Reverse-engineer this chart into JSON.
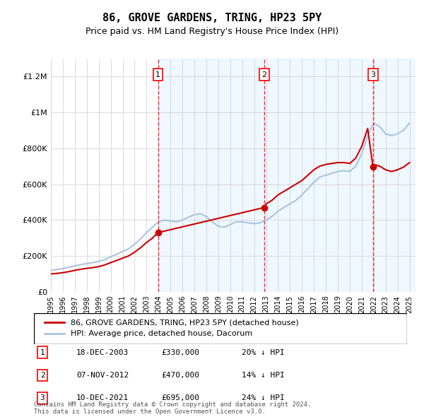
{
  "title": "86, GROVE GARDENS, TRING, HP23 5PY",
  "subtitle": "Price paid vs. HM Land Registry's House Price Index (HPI)",
  "footer": "Contains HM Land Registry data © Crown copyright and database right 2024.\nThis data is licensed under the Open Government Licence v3.0.",
  "legend_line1": "86, GROVE GARDENS, TRING, HP23 5PY (detached house)",
  "legend_line2": "HPI: Average price, detached house, Dacorum",
  "sale_color": "#cc0000",
  "hpi_color": "#aac4e0",
  "background_shade": "#ddeeff",
  "hatch_color": "#ccddee",
  "ylim": [
    0,
    1300000
  ],
  "yticks": [
    0,
    200000,
    400000,
    600000,
    800000,
    1000000,
    1200000
  ],
  "ytick_labels": [
    "£0",
    "£200K",
    "£400K",
    "£600K",
    "£800K",
    "£1M",
    "£1.2M"
  ],
  "sales": [
    {
      "num": 1,
      "date": "18-DEC-2003",
      "price": 330000,
      "hpi_diff": "20% ↓ HPI",
      "x": 2003.96
    },
    {
      "num": 2,
      "date": "07-NOV-2012",
      "price": 470000,
      "hpi_diff": "14% ↓ HPI",
      "x": 2012.85
    },
    {
      "num": 3,
      "date": "10-DEC-2021",
      "price": 695000,
      "hpi_diff": "24% ↓ HPI",
      "x": 2021.94
    }
  ],
  "hpi_x": [
    1995,
    1995.5,
    1996,
    1996.5,
    1997,
    1997.5,
    1998,
    1998.5,
    1999,
    1999.5,
    2000,
    2000.5,
    2001,
    2001.5,
    2002,
    2002.5,
    2003,
    2003.5,
    2004,
    2004.5,
    2005,
    2005.5,
    2006,
    2006.5,
    2007,
    2007.5,
    2008,
    2008.5,
    2009,
    2009.5,
    2010,
    2010.5,
    2011,
    2011.5,
    2012,
    2012.5,
    2013,
    2013.5,
    2014,
    2014.5,
    2015,
    2015.5,
    2016,
    2016.5,
    2017,
    2017.5,
    2018,
    2018.5,
    2019,
    2019.5,
    2020,
    2020.5,
    2021,
    2021.5,
    2022,
    2022.5,
    2023,
    2023.5,
    2024,
    2024.5,
    2025
  ],
  "hpi_y": [
    120000,
    125000,
    130000,
    137000,
    145000,
    152000,
    158000,
    163000,
    170000,
    180000,
    195000,
    210000,
    225000,
    240000,
    265000,
    295000,
    330000,
    360000,
    390000,
    400000,
    395000,
    390000,
    400000,
    415000,
    430000,
    435000,
    420000,
    390000,
    365000,
    360000,
    375000,
    390000,
    390000,
    385000,
    380000,
    385000,
    400000,
    420000,
    450000,
    470000,
    490000,
    510000,
    540000,
    575000,
    610000,
    640000,
    650000,
    660000,
    670000,
    675000,
    670000,
    700000,
    770000,
    870000,
    940000,
    920000,
    880000,
    870000,
    880000,
    900000,
    940000
  ],
  "sale_line_x": [
    1995,
    1995.5,
    1996,
    1996.5,
    1997,
    1997.5,
    1998,
    1998.5,
    1999,
    1999.5,
    2000,
    2000.5,
    2001,
    2001.5,
    2002,
    2002.5,
    2003,
    2003.5,
    2003.96,
    2012.85,
    2013,
    2013.5,
    2014,
    2014.5,
    2015,
    2015.5,
    2016,
    2016.5,
    2017,
    2017.5,
    2018,
    2018.5,
    2019,
    2019.5,
    2020,
    2020.5,
    2021,
    2021.5,
    2021.94,
    2022,
    2022.5,
    2023,
    2023.5,
    2024,
    2024.5,
    2025
  ],
  "sale_line_y": [
    100000,
    103000,
    107000,
    113000,
    120000,
    126000,
    131000,
    135000,
    141000,
    150000,
    163000,
    175000,
    188000,
    200000,
    221000,
    246000,
    275000,
    300000,
    330000,
    470000,
    490000,
    510000,
    540000,
    560000,
    580000,
    600000,
    620000,
    650000,
    680000,
    700000,
    710000,
    715000,
    720000,
    720000,
    715000,
    745000,
    810000,
    910000,
    695000,
    710000,
    700000,
    680000,
    670000,
    680000,
    695000,
    720000
  ],
  "xmin": 1995,
  "xmax": 2025.5
}
